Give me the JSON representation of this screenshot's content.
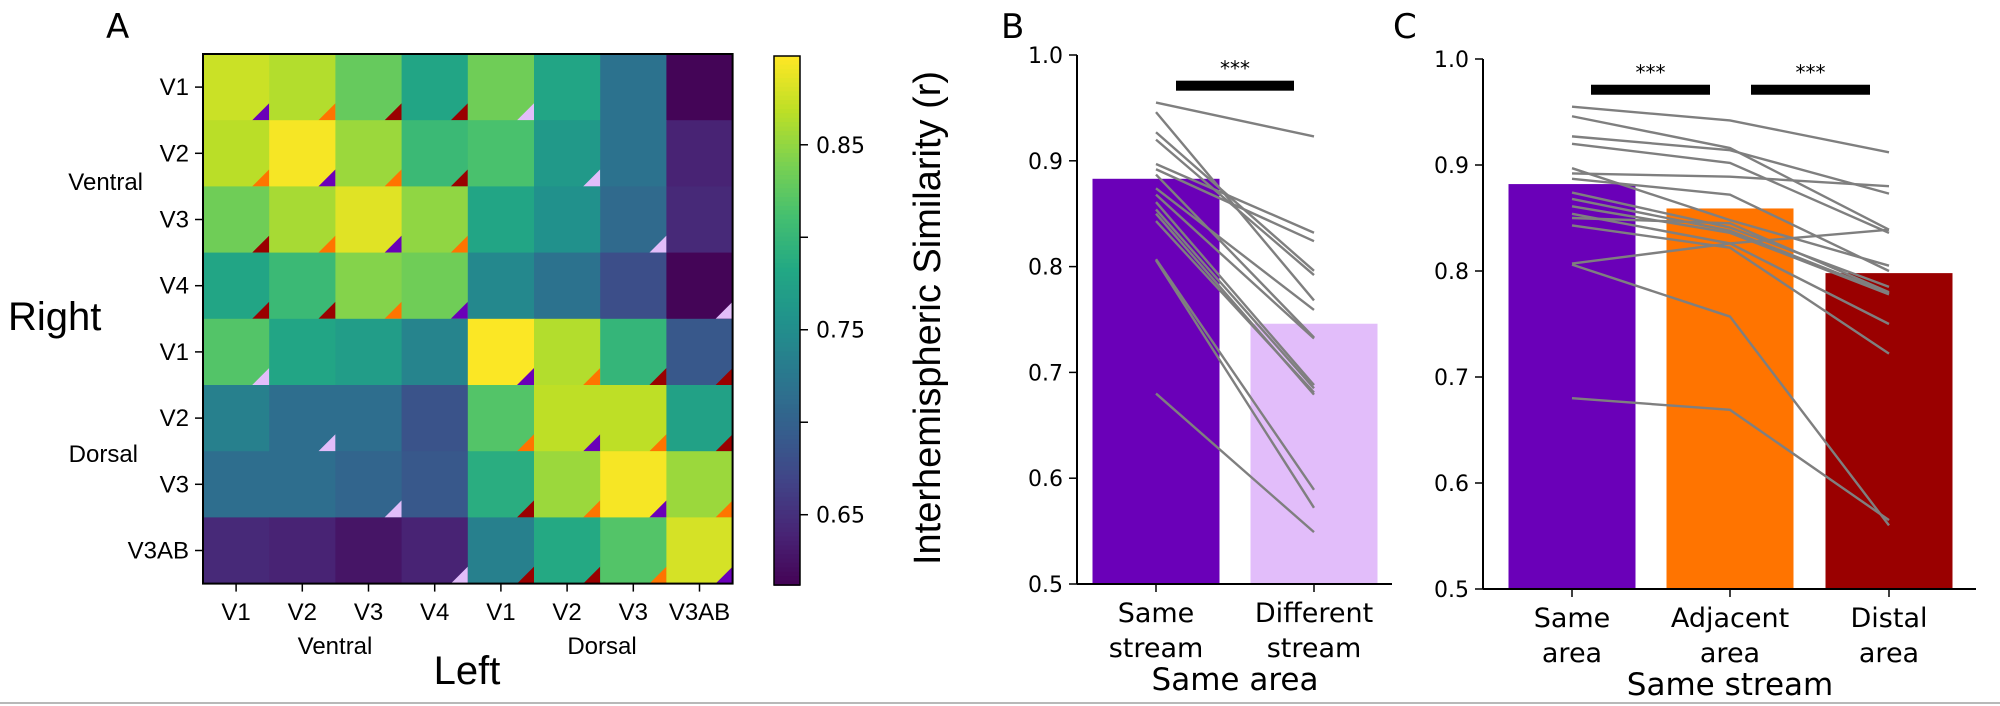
{
  "chart_data": [
    {
      "panel": "A",
      "type": "heatmap",
      "title": "",
      "ylabel": "Right",
      "xlabel": "Left",
      "row_labels": [
        "V1",
        "V2",
        "V3",
        "V4",
        "V1",
        "V2",
        "V3",
        "V3AB"
      ],
      "col_labels": [
        "V1",
        "V2",
        "V3",
        "V4",
        "V1",
        "V2",
        "V3",
        "V3AB"
      ],
      "row_groups": [
        "Ventral",
        "Dorsal"
      ],
      "col_groups": [
        "Ventral",
        "Dorsal"
      ],
      "values": [
        [
          0.875,
          0.865,
          0.83,
          0.78,
          0.835,
          0.78,
          0.72,
          0.615
        ],
        [
          0.868,
          0.895,
          0.855,
          0.805,
          0.815,
          0.765,
          0.72,
          0.64
        ],
        [
          0.835,
          0.86,
          0.885,
          0.85,
          0.78,
          0.755,
          0.71,
          0.645
        ],
        [
          0.78,
          0.805,
          0.845,
          0.835,
          0.745,
          0.72,
          0.68,
          0.615
        ],
        [
          0.82,
          0.78,
          0.77,
          0.74,
          0.897,
          0.865,
          0.8,
          0.69
        ],
        [
          0.735,
          0.715,
          0.715,
          0.685,
          0.82,
          0.87,
          0.87,
          0.775
        ],
        [
          0.715,
          0.715,
          0.705,
          0.69,
          0.79,
          0.855,
          0.895,
          0.855
        ],
        [
          0.645,
          0.64,
          0.628,
          0.64,
          0.735,
          0.785,
          0.82,
          0.88
        ]
      ],
      "corner_markers": [
        [
          "same",
          "adjacent",
          "distal",
          "distal",
          "different",
          "",
          "",
          ""
        ],
        [
          "adjacent",
          "same",
          "adjacent",
          "distal",
          "",
          "different",
          "",
          ""
        ],
        [
          "distal",
          "adjacent",
          "same",
          "adjacent",
          "",
          "",
          "different",
          ""
        ],
        [
          "distal",
          "distal",
          "adjacent",
          "same",
          "",
          "",
          "",
          "different"
        ],
        [
          "different",
          "",
          "",
          "",
          "same",
          "adjacent",
          "distal",
          "distal"
        ],
        [
          "",
          "different",
          "",
          "",
          "adjacent",
          "same",
          "adjacent",
          "distal"
        ],
        [
          "",
          "",
          "different",
          "",
          "distal",
          "adjacent",
          "same",
          "adjacent"
        ],
        [
          "",
          "",
          "",
          "different",
          "distal",
          "distal",
          "adjacent",
          "same"
        ]
      ],
      "marker_colors": {
        "same": "#6a00b8",
        "adjacent": "#ff7400",
        "distal": "#9a0000",
        "different": "#e2bdfa"
      },
      "colormap": "viridis",
      "colorbar": {
        "label": "Interhemispheric Similarity (r)",
        "range": [
          0.612,
          0.898
        ],
        "ticks": [
          0.65,
          0.7,
          0.75,
          0.8,
          0.85
        ],
        "tick_labels": [
          "0.65",
          "",
          "0.75",
          "",
          "0.85"
        ]
      }
    },
    {
      "panel": "B",
      "type": "bar",
      "title": "",
      "xlabel": "Same area",
      "ylabel": "",
      "ylim": [
        0.5,
        1.0
      ],
      "yticks": [
        0.5,
        0.6,
        0.7,
        0.8,
        0.9,
        1.0
      ],
      "ytick_labels": [
        "0.5",
        "0.6",
        "0.7",
        "0.8",
        "0.9",
        "1.0"
      ],
      "categories": [
        "Same\nstream",
        "Different\nstream"
      ],
      "category_lines": [
        [
          "Same",
          "stream"
        ],
        [
          "Different",
          "stream"
        ]
      ],
      "values": [
        0.883,
        0.746
      ],
      "colors": [
        "#6a00b8",
        "#e2bdfa"
      ],
      "subjects": [
        [
          0.955,
          0.923
        ],
        [
          0.946,
          0.768
        ],
        [
          0.927,
          0.796
        ],
        [
          0.92,
          0.792
        ],
        [
          0.897,
          0.832
        ],
        [
          0.892,
          0.824
        ],
        [
          0.887,
          0.733
        ],
        [
          0.874,
          0.759
        ],
        [
          0.868,
          0.732
        ],
        [
          0.861,
          0.688
        ],
        [
          0.854,
          0.685
        ],
        [
          0.843,
          0.681
        ],
        [
          0.85,
          0.679
        ],
        [
          0.807,
          0.589
        ],
        [
          0.806,
          0.572
        ],
        [
          0.68,
          0.549
        ]
      ],
      "subject_line_color": "#7f7f7f",
      "significance": [
        {
          "from": 0,
          "to": 1,
          "label": "***",
          "y": 0.971
        }
      ]
    },
    {
      "panel": "C",
      "type": "bar",
      "title": "",
      "xlabel": "Same stream",
      "ylabel": "",
      "ylim": [
        0.5,
        1.0
      ],
      "yticks": [
        0.5,
        0.6,
        0.7,
        0.8,
        0.9,
        1.0
      ],
      "ytick_labels": [
        "0.5",
        "0.6",
        "0.7",
        "0.8",
        "0.9",
        "1.0"
      ],
      "categories": [
        "Same\narea",
        "Adjacent\narea",
        "Distal\narea"
      ],
      "category_lines": [
        [
          "Same",
          "area"
        ],
        [
          "Adjacent",
          "area"
        ],
        [
          "Distal",
          "area"
        ]
      ],
      "values": [
        0.882,
        0.859,
        0.798
      ],
      "colors": [
        "#6a00b8",
        "#ff7400",
        "#9a0000"
      ],
      "subjects": [
        [
          0.955,
          0.942,
          0.912
        ],
        [
          0.946,
          0.916,
          0.839
        ],
        [
          0.927,
          0.914,
          0.873
        ],
        [
          0.92,
          0.902,
          0.836
        ],
        [
          0.897,
          0.848,
          0.805
        ],
        [
          0.892,
          0.889,
          0.88
        ],
        [
          0.887,
          0.872,
          0.8
        ],
        [
          0.874,
          0.841,
          0.785
        ],
        [
          0.868,
          0.838,
          0.779
        ],
        [
          0.861,
          0.836,
          0.778
        ],
        [
          0.854,
          0.826,
          0.75
        ],
        [
          0.843,
          0.822,
          0.722
        ],
        [
          0.85,
          0.845,
          0.78
        ],
        [
          0.807,
          0.826,
          0.839
        ],
        [
          0.806,
          0.757,
          0.56
        ],
        [
          0.68,
          0.669,
          0.565
        ]
      ],
      "subject_line_color": "#7f7f7f",
      "significance": [
        {
          "from": 0,
          "to": 1,
          "label": "***",
          "y": 0.971
        },
        {
          "from": 1,
          "to": 2,
          "label": "***",
          "y": 0.971
        }
      ]
    }
  ],
  "labels": {
    "panel_a": "A",
    "panel_b": "B",
    "panel_c": "C"
  }
}
